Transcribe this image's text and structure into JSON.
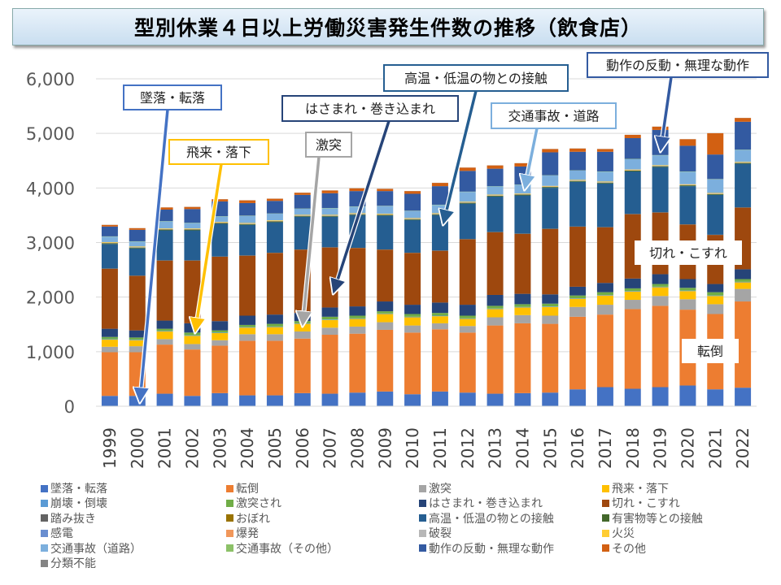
{
  "chart_data": {
    "type": "bar",
    "stacked": true,
    "title": "型別休業４日以上労働災害発生件数の推移（飲食店）",
    "xlabel": "",
    "ylabel": "",
    "ylim": [
      0,
      6000
    ],
    "yticks": [
      "0",
      "1,000",
      "2,000",
      "3,000",
      "4,000",
      "5,000",
      "6,000"
    ],
    "ytick_values": [
      0,
      1000,
      2000,
      3000,
      4000,
      5000,
      6000
    ],
    "grid": true,
    "legend_position": "bottom",
    "categories": [
      "1999",
      "2000",
      "2001",
      "2002",
      "2003",
      "2004",
      "2005",
      "2006",
      "2007",
      "2008",
      "2009",
      "2010",
      "2011",
      "2012",
      "2013",
      "2014",
      "2015",
      "2016",
      "2017",
      "2018",
      "2019",
      "2020",
      "2021",
      "2022"
    ],
    "series": [
      {
        "name": "墜落・転落",
        "color": "#4472c4",
        "values": [
          190,
          190,
          230,
          190,
          240,
          200,
          200,
          240,
          230,
          250,
          270,
          220,
          270,
          250,
          230,
          240,
          250,
          310,
          350,
          320,
          350,
          380,
          310,
          340
        ]
      },
      {
        "name": "転倒",
        "color": "#ed7d31",
        "values": [
          800,
          800,
          900,
          850,
          870,
          1000,
          1000,
          1000,
          1080,
          1080,
          1130,
          1130,
          1140,
          1100,
          1250,
          1280,
          1260,
          1330,
          1330,
          1460,
          1490,
          1390,
          1380,
          1580
        ]
      },
      {
        "name": "激突",
        "color": "#a5a5a5",
        "values": [
          100,
          110,
          100,
          100,
          100,
          120,
          120,
          130,
          130,
          130,
          140,
          130,
          110,
          120,
          150,
          150,
          150,
          180,
          180,
          170,
          180,
          190,
          180,
          230
        ]
      },
      {
        "name": "飛来・落下",
        "color": "#ffc000",
        "values": [
          130,
          110,
          140,
          150,
          130,
          120,
          130,
          140,
          140,
          140,
          150,
          150,
          130,
          130,
          150,
          140,
          160,
          150,
          170,
          150,
          160,
          150,
          150,
          120
        ]
      },
      {
        "name": "崩壊・倒壊",
        "color": "#5b9bd5",
        "values": [
          10,
          10,
          10,
          10,
          10,
          10,
          10,
          10,
          10,
          10,
          10,
          10,
          10,
          10,
          10,
          10,
          10,
          10,
          10,
          10,
          10,
          10,
          10,
          10
        ]
      },
      {
        "name": "激突され",
        "color": "#70ad47",
        "values": [
          40,
          40,
          40,
          50,
          40,
          40,
          50,
          40,
          50,
          50,
          40,
          50,
          50,
          50,
          50,
          50,
          50,
          50,
          50,
          50,
          50,
          50,
          60,
          50
        ]
      },
      {
        "name": "はさまれ・巻き込まれ",
        "color": "#264478",
        "values": [
          150,
          130,
          150,
          170,
          170,
          170,
          170,
          150,
          170,
          170,
          180,
          170,
          190,
          200,
          200,
          190,
          170,
          160,
          170,
          180,
          180,
          160,
          150,
          180
        ]
      },
      {
        "name": "切れ・こすれ",
        "color": "#9e480e",
        "values": [
          1100,
          1000,
          1100,
          1150,
          1180,
          1100,
          1130,
          1160,
          1100,
          1070,
          950,
          950,
          950,
          1200,
          1150,
          1100,
          1200,
          1100,
          1020,
          1180,
          1130,
          1000,
          900,
          1130
        ]
      },
      {
        "name": "踏み抜き",
        "color": "#636363",
        "values": [
          2,
          2,
          2,
          2,
          2,
          2,
          2,
          2,
          2,
          2,
          2,
          2,
          2,
          2,
          2,
          2,
          2,
          2,
          2,
          2,
          2,
          2,
          2,
          2
        ]
      },
      {
        "name": "おぼれ",
        "color": "#997300",
        "values": [
          1,
          1,
          1,
          1,
          1,
          1,
          1,
          1,
          1,
          1,
          1,
          1,
          1,
          1,
          1,
          1,
          1,
          1,
          1,
          1,
          1,
          1,
          1,
          1
        ]
      },
      {
        "name": "高温・低温の物との接触",
        "color": "#255e91",
        "values": [
          450,
          500,
          550,
          550,
          600,
          560,
          560,
          600,
          560,
          600,
          620,
          600,
          650,
          650,
          650,
          700,
          750,
          820,
          800,
          780,
          830,
          700,
          730,
          800
        ]
      },
      {
        "name": "有害物等との接触",
        "color": "#43682b",
        "values": [
          15,
          15,
          15,
          15,
          15,
          15,
          15,
          15,
          15,
          15,
          15,
          15,
          15,
          15,
          15,
          15,
          15,
          15,
          15,
          15,
          15,
          15,
          15,
          15
        ]
      },
      {
        "name": "感電",
        "color": "#698ed0",
        "values": [
          2,
          2,
          2,
          2,
          2,
          2,
          2,
          2,
          2,
          2,
          2,
          2,
          2,
          2,
          2,
          2,
          2,
          2,
          2,
          2,
          2,
          2,
          2,
          2
        ]
      },
      {
        "name": "爆発",
        "color": "#f1975a",
        "values": [
          5,
          5,
          5,
          5,
          5,
          5,
          5,
          5,
          5,
          5,
          5,
          5,
          5,
          5,
          5,
          5,
          5,
          5,
          5,
          5,
          5,
          5,
          5,
          5
        ]
      },
      {
        "name": "破裂",
        "color": "#b7b7b7",
        "values": [
          3,
          3,
          3,
          3,
          3,
          3,
          3,
          3,
          3,
          3,
          3,
          3,
          3,
          3,
          3,
          3,
          3,
          3,
          3,
          3,
          3,
          3,
          3,
          3
        ]
      },
      {
        "name": "火災",
        "color": "#ffcd33",
        "values": [
          10,
          10,
          10,
          10,
          10,
          10,
          10,
          10,
          10,
          10,
          10,
          10,
          10,
          10,
          10,
          10,
          10,
          10,
          10,
          10,
          10,
          10,
          10,
          10
        ]
      },
      {
        "name": "交通事故（道路）",
        "color": "#7cafdd",
        "values": [
          100,
          90,
          130,
          100,
          100,
          130,
          120,
          110,
          120,
          120,
          140,
          130,
          150,
          180,
          150,
          160,
          190,
          170,
          180,
          190,
          180,
          230,
          250,
          220
        ]
      },
      {
        "name": "交通事故（その他）",
        "color": "#8cc168",
        "values": [
          5,
          5,
          5,
          5,
          5,
          5,
          5,
          5,
          5,
          5,
          5,
          5,
          5,
          5,
          5,
          5,
          5,
          5,
          5,
          5,
          5,
          5,
          5,
          5
        ]
      },
      {
        "name": "動作の反動・無理な動作",
        "color": "#335aa1",
        "values": [
          180,
          210,
          210,
          250,
          270,
          230,
          230,
          250,
          270,
          280,
          270,
          310,
          340,
          380,
          320,
          330,
          420,
          340,
          360,
          380,
          460,
          470,
          450,
          510
        ]
      },
      {
        "name": "その他",
        "color": "#d26012",
        "values": [
          30,
          30,
          40,
          40,
          40,
          50,
          40,
          40,
          50,
          50,
          40,
          50,
          60,
          60,
          60,
          60,
          60,
          60,
          50,
          60,
          60,
          120,
          390,
          70
        ]
      },
      {
        "name": "分類不能",
        "color": "#848484",
        "values": [
          2,
          2,
          2,
          2,
          2,
          2,
          2,
          2,
          2,
          2,
          2,
          2,
          2,
          2,
          2,
          2,
          2,
          2,
          2,
          2,
          2,
          2,
          2,
          2
        ]
      }
    ],
    "annotations": [
      {
        "text": "墜落・転落",
        "color": "#4472c4"
      },
      {
        "text": "飛来・落下",
        "color": "#ffc000"
      },
      {
        "text": "激突",
        "color": "#a5a5a5"
      },
      {
        "text": "はさまれ・巻き込まれ",
        "color": "#264478"
      },
      {
        "text": "高温・低温の物との接触",
        "color": "#255e91"
      },
      {
        "text": "交通事故・道路",
        "color": "#7cafdd"
      },
      {
        "text": "動作の反動・無理な動作",
        "color": "#335aa1"
      },
      {
        "text": "切れ・こすれ",
        "color": "#ffffff"
      },
      {
        "text": "転倒",
        "color": "#ffffff"
      }
    ]
  }
}
